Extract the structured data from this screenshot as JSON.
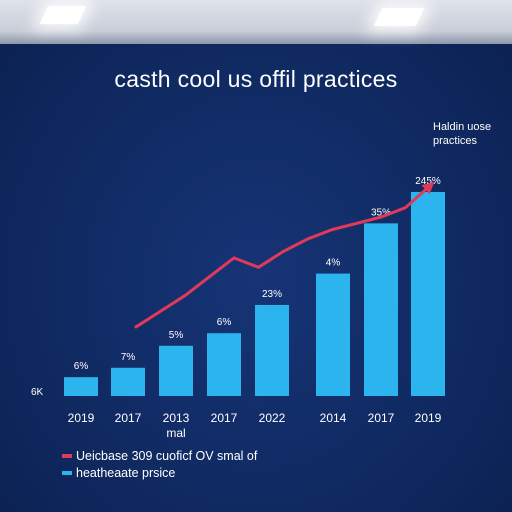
{
  "colors": {
    "background": "#102a62",
    "bar": "#2bb4ee",
    "line": "#e03a5a",
    "text": "#ffffff"
  },
  "chart_data": {
    "type": "bar",
    "title": "casth cool us offil practices",
    "categories": [
      "2019",
      "2017",
      "2013",
      "2017",
      "2022",
      "2014",
      "2017",
      "2019"
    ],
    "category_sublabels": [
      "",
      "",
      "mal",
      "",
      "",
      "",
      "",
      ""
    ],
    "series": [
      {
        "name": "heatheaate prsice",
        "values": [
          3,
          4.5,
          8,
          10,
          14.5,
          19.5,
          27.5,
          32.5
        ],
        "data_labels": [
          "6%",
          "7%",
          "5%",
          "6%",
          "23%",
          "4%",
          "35%",
          "245%"
        ]
      }
    ],
    "trend_line": {
      "name": "Ueicbase 309 cuoficf OV smal of",
      "values": [
        11,
        13.5,
        16,
        19,
        22,
        20.5,
        23,
        25,
        26.5,
        27.5,
        28.5,
        30,
        33.5
      ]
    },
    "y_axis_label": "6K",
    "ylim": [
      0,
      36
    ],
    "annotation": [
      "Haldin uose",
      "practices"
    ],
    "grid": false,
    "legend_position": "bottom-left"
  },
  "legend": [
    {
      "label": "Ueicbase 309 cuoficf OV smal of",
      "color": "#e03a5a"
    },
    {
      "label": "heatheaate prsice",
      "color": "#2bb4ee"
    }
  ]
}
